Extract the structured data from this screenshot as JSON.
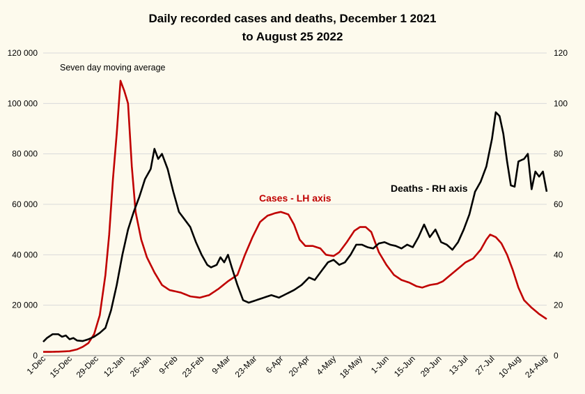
{
  "chart_data": {
    "type": "line",
    "title": "Daily recorded cases and deaths,  December 1 2021 to August 25 2022",
    "title_lines": [
      "Daily recorded cases and deaths,  December 1 2021",
      "to August 25 2022"
    ],
    "annotation": "Seven day moving average",
    "start_date": "2021-12-01",
    "end_date": "2022-08-25",
    "x_tick_labels": [
      "1-Dec",
      "15-Dec",
      "29-Dec",
      "12-Jan",
      "26-Jan",
      "9-Feb",
      "23-Feb",
      "9-Mar",
      "23-Mar",
      "6-Apr",
      "20-Apr",
      "4-May",
      "18-May",
      "1-Jun",
      "15-Jun",
      "29-Jun",
      "13-Jul",
      "27-Jul",
      "10-Aug",
      "24-Aug"
    ],
    "y_left": {
      "ylim": [
        0,
        120000
      ],
      "tick_labels": [
        "0",
        "20 000",
        "40 000",
        "60 000",
        "80 000",
        "100 000",
        "120 000"
      ]
    },
    "y_right": {
      "ylim": [
        0,
        120
      ],
      "tick_labels": [
        "0",
        "20",
        "40",
        "60",
        "80",
        "100",
        "120"
      ]
    },
    "grid": "horizontal",
    "series": [
      {
        "name": "Cases - LH axis",
        "axis": "left",
        "color": "#c00000",
        "points": [
          [
            "2021-12-01",
            1500
          ],
          [
            "2021-12-05",
            1500
          ],
          [
            "2021-12-10",
            1600
          ],
          [
            "2021-12-15",
            1800
          ],
          [
            "2021-12-19",
            2500
          ],
          [
            "2021-12-22",
            3500
          ],
          [
            "2021-12-25",
            5000
          ],
          [
            "2021-12-28",
            8500
          ],
          [
            "2021-12-31",
            16000
          ],
          [
            "2022-01-03",
            32000
          ],
          [
            "2022-01-05",
            48000
          ],
          [
            "2022-01-07",
            70000
          ],
          [
            "2022-01-09",
            88000
          ],
          [
            "2022-01-11",
            109000
          ],
          [
            "2022-01-13",
            105000
          ],
          [
            "2022-01-15",
            100000
          ],
          [
            "2022-01-17",
            75000
          ],
          [
            "2022-01-19",
            57000
          ],
          [
            "2022-01-22",
            46000
          ],
          [
            "2022-01-25",
            39000
          ],
          [
            "2022-01-29",
            33000
          ],
          [
            "2022-02-02",
            28000
          ],
          [
            "2022-02-06",
            26000
          ],
          [
            "2022-02-12",
            25000
          ],
          [
            "2022-02-17",
            23500
          ],
          [
            "2022-02-22",
            23000
          ],
          [
            "2022-02-27",
            24000
          ],
          [
            "2022-03-04",
            26500
          ],
          [
            "2022-03-09",
            29500
          ],
          [
            "2022-03-14",
            32000
          ],
          [
            "2022-03-18",
            40000
          ],
          [
            "2022-03-22",
            47000
          ],
          [
            "2022-03-26",
            53000
          ],
          [
            "2022-03-30",
            55500
          ],
          [
            "2022-04-03",
            56500
          ],
          [
            "2022-04-06",
            57000
          ],
          [
            "2022-04-10",
            56000
          ],
          [
            "2022-04-13",
            52000
          ],
          [
            "2022-04-16",
            46000
          ],
          [
            "2022-04-19",
            43500
          ],
          [
            "2022-04-23",
            43500
          ],
          [
            "2022-04-27",
            42500
          ],
          [
            "2022-04-30",
            40000
          ],
          [
            "2022-05-04",
            39500
          ],
          [
            "2022-05-07",
            41000
          ],
          [
            "2022-05-11",
            45000
          ],
          [
            "2022-05-15",
            49500
          ],
          [
            "2022-05-18",
            51000
          ],
          [
            "2022-05-21",
            51000
          ],
          [
            "2022-05-24",
            49000
          ],
          [
            "2022-05-28",
            41000
          ],
          [
            "2022-06-01",
            36000
          ],
          [
            "2022-06-05",
            32000
          ],
          [
            "2022-06-09",
            30000
          ],
          [
            "2022-06-13",
            29000
          ],
          [
            "2022-06-17",
            27500
          ],
          [
            "2022-06-20",
            27000
          ],
          [
            "2022-06-24",
            28000
          ],
          [
            "2022-06-28",
            28500
          ],
          [
            "2022-07-01",
            29500
          ],
          [
            "2022-07-05",
            32000
          ],
          [
            "2022-07-09",
            34500
          ],
          [
            "2022-07-13",
            37000
          ],
          [
            "2022-07-17",
            38500
          ],
          [
            "2022-07-21",
            42000
          ],
          [
            "2022-07-24",
            46000
          ],
          [
            "2022-07-26",
            48000
          ],
          [
            "2022-07-29",
            47000
          ],
          [
            "2022-08-01",
            44500
          ],
          [
            "2022-08-04",
            40000
          ],
          [
            "2022-08-07",
            34000
          ],
          [
            "2022-08-10",
            27000
          ],
          [
            "2022-08-13",
            22000
          ],
          [
            "2022-08-17",
            19000
          ],
          [
            "2022-08-21",
            16500
          ],
          [
            "2022-08-25",
            14500
          ]
        ]
      },
      {
        "name": "Deaths - RH axis",
        "axis": "right",
        "color": "#000000",
        "points": [
          [
            "2021-12-01",
            5.5
          ],
          [
            "2021-12-03",
            7
          ],
          [
            "2021-12-06",
            8.5
          ],
          [
            "2021-12-09",
            8.5
          ],
          [
            "2021-12-11",
            7.5
          ],
          [
            "2021-12-13",
            8
          ],
          [
            "2021-12-15",
            6.5
          ],
          [
            "2021-12-17",
            7
          ],
          [
            "2021-12-19",
            6
          ],
          [
            "2021-12-22",
            5.8
          ],
          [
            "2021-12-25",
            6.5
          ],
          [
            "2021-12-28",
            7.5
          ],
          [
            "2021-12-31",
            9
          ],
          [
            "2022-01-03",
            11
          ],
          [
            "2022-01-06",
            18
          ],
          [
            "2022-01-09",
            28
          ],
          [
            "2022-01-12",
            40
          ],
          [
            "2022-01-15",
            50
          ],
          [
            "2022-01-18",
            57
          ],
          [
            "2022-01-21",
            63
          ],
          [
            "2022-01-24",
            70
          ],
          [
            "2022-01-27",
            74
          ],
          [
            "2022-01-29",
            82
          ],
          [
            "2022-01-31",
            78
          ],
          [
            "2022-02-02",
            80
          ],
          [
            "2022-02-05",
            74
          ],
          [
            "2022-02-08",
            65
          ],
          [
            "2022-02-11",
            57
          ],
          [
            "2022-02-14",
            54
          ],
          [
            "2022-02-17",
            51
          ],
          [
            "2022-02-20",
            45
          ],
          [
            "2022-02-23",
            40
          ],
          [
            "2022-02-26",
            36
          ],
          [
            "2022-02-28",
            35
          ],
          [
            "2022-03-03",
            36
          ],
          [
            "2022-03-05",
            39
          ],
          [
            "2022-03-07",
            37
          ],
          [
            "2022-03-09",
            40
          ],
          [
            "2022-03-11",
            35
          ],
          [
            "2022-03-14",
            28
          ],
          [
            "2022-03-17",
            22
          ],
          [
            "2022-03-20",
            21
          ],
          [
            "2022-03-24",
            22
          ],
          [
            "2022-03-28",
            23
          ],
          [
            "2022-04-01",
            24
          ],
          [
            "2022-04-05",
            23
          ],
          [
            "2022-04-09",
            24.5
          ],
          [
            "2022-04-13",
            26
          ],
          [
            "2022-04-17",
            28
          ],
          [
            "2022-04-21",
            31
          ],
          [
            "2022-04-24",
            30
          ],
          [
            "2022-04-27",
            33
          ],
          [
            "2022-05-01",
            37
          ],
          [
            "2022-05-04",
            38
          ],
          [
            "2022-05-07",
            36
          ],
          [
            "2022-05-10",
            37
          ],
          [
            "2022-05-13",
            40
          ],
          [
            "2022-05-16",
            44
          ],
          [
            "2022-05-19",
            44
          ],
          [
            "2022-05-22",
            43
          ],
          [
            "2022-05-25",
            42.5
          ],
          [
            "2022-05-28",
            44.5
          ],
          [
            "2022-05-31",
            45
          ],
          [
            "2022-06-03",
            44
          ],
          [
            "2022-06-06",
            43.5
          ],
          [
            "2022-06-09",
            42.5
          ],
          [
            "2022-06-12",
            44
          ],
          [
            "2022-06-15",
            43
          ],
          [
            "2022-06-18",
            47
          ],
          [
            "2022-06-21",
            52
          ],
          [
            "2022-06-24",
            47
          ],
          [
            "2022-06-27",
            50
          ],
          [
            "2022-06-30",
            45
          ],
          [
            "2022-07-03",
            44
          ],
          [
            "2022-07-06",
            42
          ],
          [
            "2022-07-09",
            45
          ],
          [
            "2022-07-12",
            50
          ],
          [
            "2022-07-15",
            56
          ],
          [
            "2022-07-18",
            65
          ],
          [
            "2022-07-21",
            69
          ],
          [
            "2022-07-24",
            75
          ],
          [
            "2022-07-27",
            86
          ],
          [
            "2022-07-29",
            96.5
          ],
          [
            "2022-07-31",
            95
          ],
          [
            "2022-08-02",
            88
          ],
          [
            "2022-08-04",
            77
          ],
          [
            "2022-08-06",
            67.5
          ],
          [
            "2022-08-08",
            67
          ],
          [
            "2022-08-10",
            77
          ],
          [
            "2022-08-13",
            78
          ],
          [
            "2022-08-15",
            80
          ],
          [
            "2022-08-17",
            66
          ],
          [
            "2022-08-19",
            73
          ],
          [
            "2022-08-21",
            71
          ],
          [
            "2022-08-23",
            73
          ],
          [
            "2022-08-25",
            65
          ]
        ]
      }
    ]
  }
}
